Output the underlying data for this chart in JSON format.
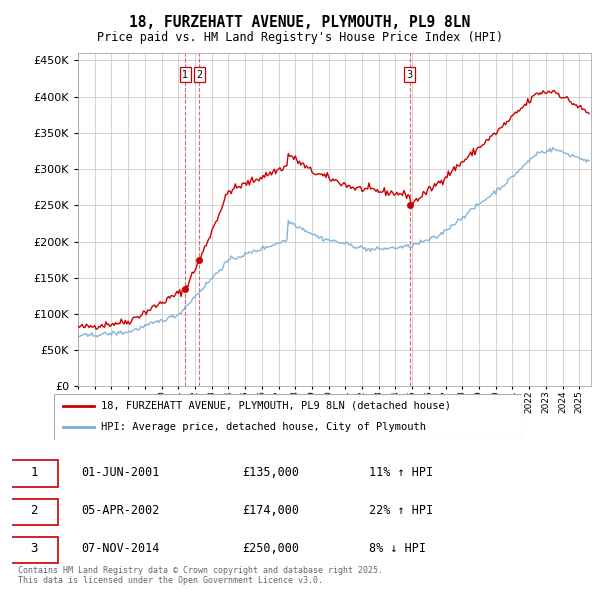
{
  "title": "18, FURZEHATT AVENUE, PLYMOUTH, PL9 8LN",
  "subtitle": "Price paid vs. HM Land Registry's House Price Index (HPI)",
  "ylim": [
    0,
    460000
  ],
  "yticks": [
    0,
    50000,
    100000,
    150000,
    200000,
    250000,
    300000,
    350000,
    400000,
    450000
  ],
  "xlim_start": 1995.0,
  "xlim_end": 2025.7,
  "purchase_events": [
    {
      "label": "1",
      "date_num": 2001.42,
      "price": 135000,
      "date_str": "01-JUN-2001",
      "price_str": "£135,000",
      "pct": "11%",
      "dir": "↑"
    },
    {
      "label": "2",
      "date_num": 2002.27,
      "price": 174000,
      "date_str": "05-APR-2002",
      "price_str": "£174,000",
      "pct": "22%",
      "dir": "↑"
    },
    {
      "label": "3",
      "date_num": 2014.85,
      "price": 250000,
      "date_str": "07-NOV-2014",
      "price_str": "£250,000",
      "pct": "8%",
      "dir": "↓"
    }
  ],
  "legend_house": "18, FURZEHATT AVENUE, PLYMOUTH, PL9 8LN (detached house)",
  "legend_hpi": "HPI: Average price, detached house, City of Plymouth",
  "footer": "Contains HM Land Registry data © Crown copyright and database right 2025.\nThis data is licensed under the Open Government Licence v3.0.",
  "house_color": "#cc0000",
  "hpi_color": "#7aadd4",
  "background_color": "#ffffff",
  "grid_color": "#cccccc"
}
